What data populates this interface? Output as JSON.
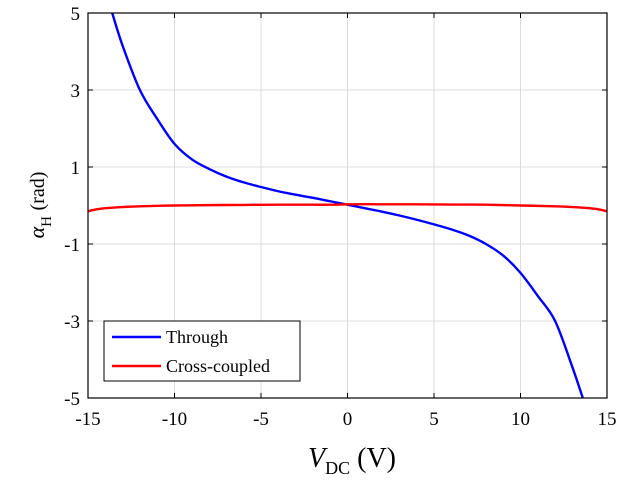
{
  "chart_data": {
    "type": "line",
    "xlabel": {
      "symbol": "V",
      "subscript": "DC",
      "unit": "(V)"
    },
    "ylabel": {
      "symbol": "α",
      "subscript": "H",
      "unit": "(rad)"
    },
    "xlim": [
      -15,
      15
    ],
    "ylim": [
      -5,
      5
    ],
    "xticks": [
      -15,
      -10,
      -5,
      0,
      5,
      10,
      15
    ],
    "yticks": [
      5,
      3,
      1,
      -1,
      -3,
      -5
    ],
    "xtick_labels": [
      "-15",
      "-10",
      "-5",
      "0",
      "5",
      "10",
      "15"
    ],
    "ytick_labels": [
      "5",
      "3",
      "1",
      "-1",
      "-3",
      "-5"
    ],
    "grid": true,
    "legend_position": "bottom-left",
    "series": [
      {
        "name": "Through",
        "color": "#0000ff",
        "x": [
          -13.6,
          -13.0,
          -12.0,
          -11.0,
          -10.0,
          -9.0,
          -8.0,
          -7.0,
          -6.0,
          -5.0,
          -4.0,
          -3.0,
          -2.0,
          -1.0,
          0.0,
          1.0,
          2.0,
          3.0,
          4.0,
          5.0,
          6.0,
          7.0,
          8.0,
          9.0,
          10.0,
          11.0,
          12.0,
          13.0,
          13.6
        ],
        "y": [
          5.0,
          4.15,
          3.0,
          2.25,
          1.6,
          1.2,
          0.95,
          0.75,
          0.6,
          0.48,
          0.37,
          0.28,
          0.2,
          0.11,
          0.02,
          -0.07,
          -0.16,
          -0.26,
          -0.37,
          -0.49,
          -0.62,
          -0.78,
          -1.0,
          -1.3,
          -1.75,
          -2.35,
          -3.0,
          -4.2,
          -5.0
        ]
      },
      {
        "name": "Cross-coupled",
        "color": "#ff0000",
        "x": [
          -15.0,
          -14.5,
          -14.0,
          -13.0,
          -12.0,
          -10.0,
          -8.0,
          -6.0,
          -4.0,
          -2.0,
          -1.0,
          0.0,
          1.0,
          2.0,
          4.0,
          6.0,
          8.0,
          10.0,
          12.0,
          13.0,
          14.0,
          14.5,
          15.0
        ],
        "y": [
          -0.15,
          -0.1,
          -0.07,
          -0.04,
          -0.02,
          0.0,
          0.01,
          0.015,
          0.02,
          0.02,
          0.02,
          0.03,
          0.035,
          0.03,
          0.03,
          0.025,
          0.02,
          0.0,
          -0.02,
          -0.04,
          -0.07,
          -0.1,
          -0.15
        ]
      }
    ]
  }
}
